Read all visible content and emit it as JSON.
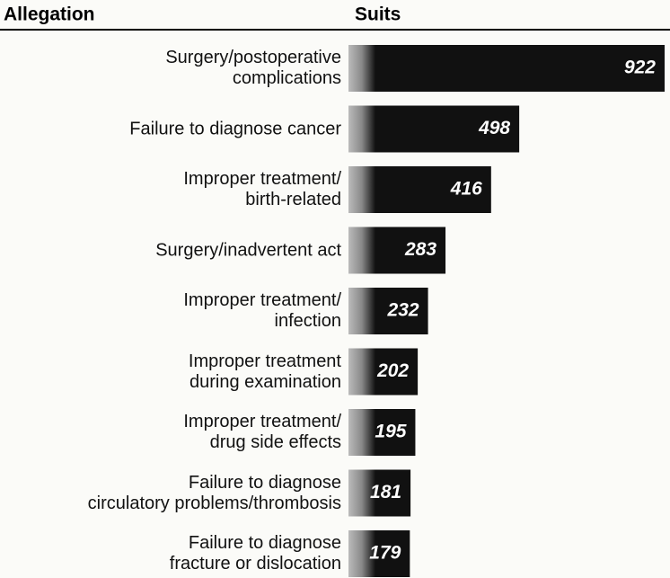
{
  "chart_data": {
    "type": "bar",
    "orientation": "horizontal",
    "headers": {
      "category": "Allegation",
      "value": "Suits"
    },
    "categories": [
      "Surgery/postoperative\ncomplications",
      "Failure to diagnose cancer",
      "Improper treatment/\nbirth-related",
      "Surgery/inadvertent act",
      "Improper treatment/\ninfection",
      "Improper treatment\nduring examination",
      "Improper treatment/\ndrug side effects",
      "Failure to diagnose\ncirculatory problems/thrombosis",
      "Failure to diagnose\nfracture or dislocation"
    ],
    "values": [
      922,
      498,
      416,
      283,
      232,
      202,
      195,
      181,
      179
    ],
    "color": "#111111"
  }
}
